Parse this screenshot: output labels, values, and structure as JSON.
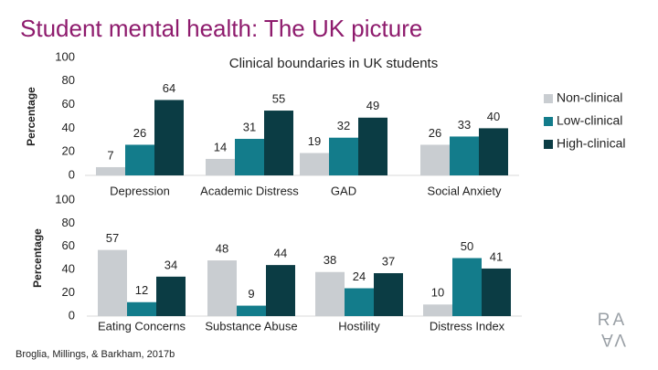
{
  "slide_title": "Student mental health: The UK picture",
  "source": "Broglia, Millings, & Barkham, 2017b",
  "logo": [
    "RA",
    "VA"
  ],
  "chart_data": [
    {
      "type": "bar",
      "title": "Clinical boundaries in UK students",
      "ylabel": "Percentage",
      "categories": [
        "Depression",
        "Academic Distress",
        "GAD",
        "Social Anxiety"
      ],
      "series": [
        {
          "name": "Non-clinical",
          "color": "#c9cdd1",
          "values": [
            7,
            14,
            19,
            26
          ]
        },
        {
          "name": "Low-clinical",
          "color": "#137c8b",
          "values": [
            26,
            31,
            32,
            33
          ]
        },
        {
          "name": "High-clinical",
          "color": "#0b3c44",
          "values": [
            64,
            55,
            49,
            40
          ]
        }
      ],
      "ylim": [
        0,
        100
      ],
      "yticks": [
        0,
        20,
        40,
        60,
        80,
        100
      ],
      "legend": "right"
    },
    {
      "type": "bar",
      "ylabel": "Percentage",
      "categories": [
        "Eating Concerns",
        "Substance Abuse",
        "Hostility",
        "Distress Index"
      ],
      "series": [
        {
          "color": "#c9cdd1",
          "values": [
            57,
            48,
            38,
            10
          ]
        },
        {
          "color": "#137c8b",
          "values": [
            12,
            9,
            24,
            50
          ]
        },
        {
          "color": "#0b3c44",
          "values": [
            34,
            44,
            37,
            41
          ]
        }
      ],
      "ylim": [
        0,
        100
      ],
      "yticks": [
        0,
        20,
        40,
        60,
        80,
        100
      ]
    }
  ]
}
